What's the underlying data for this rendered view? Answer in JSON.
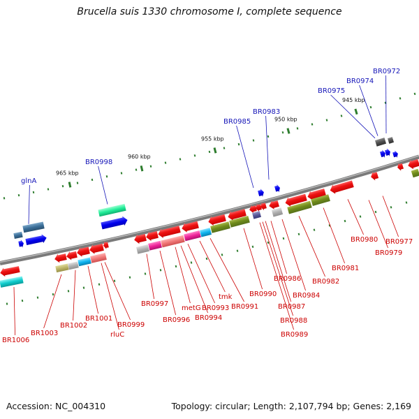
{
  "title": "Brucella suis 1330 chromosome I, complete sequence",
  "footer": {
    "accession": "Accession: NC_004310",
    "summary": "Topology: circular; Length: 2,107,794 bp; Genes: 2,169"
  },
  "ruler": {
    "ticks": [
      "945 kbp",
      "950 kbp",
      "955 kbp",
      "960 kbp",
      "965 kbp"
    ]
  },
  "genes_top": [
    "BR0972",
    "BR0974",
    "BR0975",
    "BR0983",
    "BR0985",
    "BR0998",
    "glnA"
  ],
  "genes_bottom": [
    "BR0977",
    "BR0979",
    "BR0980",
    "BR0981",
    "BR0982",
    "BR0984",
    "BR0986",
    "BR0987",
    "BR0988",
    "BR0989",
    "BR0990",
    "BR0991",
    "tmk",
    "BR0993",
    "metG",
    "BR0994",
    "BR0996",
    "BR0997",
    "BR0999",
    "rluC",
    "BR1001",
    "BR1002",
    "BR1003",
    "BR1006"
  ],
  "colors": {
    "forward_gene": "#0000ff",
    "reverse_gene": "#ff0000",
    "backbone": "#888888",
    "label_top": "#1515b8",
    "label_bottom": "#cc0000"
  }
}
